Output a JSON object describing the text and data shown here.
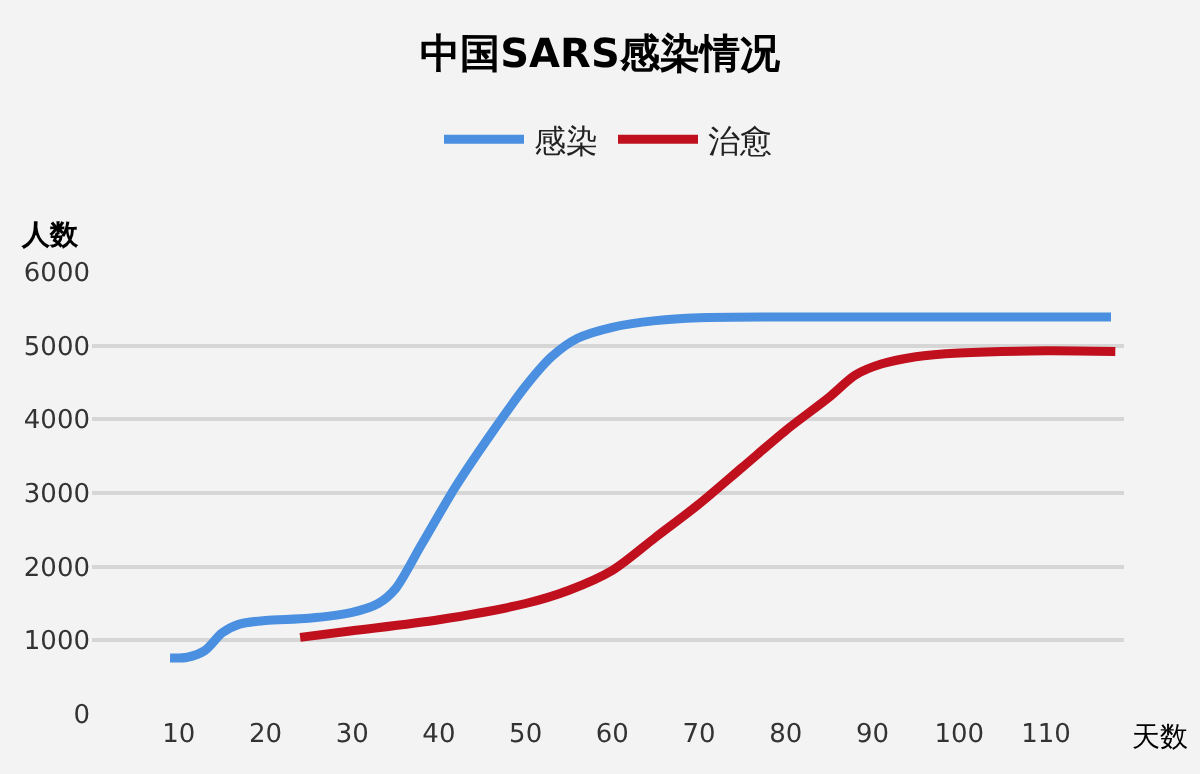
{
  "chart_data": {
    "type": "line",
    "title": "中国SARS感染情况",
    "xlabel": "天数",
    "ylabel": "人数",
    "xlim": [
      0,
      119
    ],
    "xticks": [
      10,
      20,
      30,
      40,
      50,
      60,
      70,
      80,
      90,
      100,
      110
    ],
    "ylim": [
      0,
      6000
    ],
    "yticks": [
      0,
      1000,
      2000,
      3000,
      4000,
      5000,
      6000
    ],
    "grid": "y",
    "legend": "top",
    "line_style": "solid",
    "marker": "none",
    "series": [
      {
        "name": "感染",
        "color": "#4a8fe0",
        "x": [
          9,
          11,
          13,
          15,
          17,
          20,
          25,
          30,
          33,
          35,
          38,
          42,
          46,
          50,
          53,
          56,
          60,
          65,
          70,
          80,
          117.5
        ],
        "values": [
          760,
          770,
          860,
          1100,
          1220,
          1270,
          1300,
          1380,
          1500,
          1700,
          2300,
          3100,
          3800,
          4450,
          4850,
          5100,
          5250,
          5340,
          5380,
          5390,
          5390
        ]
      },
      {
        "name": "治愈",
        "color": "#c0101e",
        "x": [
          24,
          30,
          40,
          50,
          55,
          60,
          65,
          70,
          75,
          80,
          85,
          88,
          91,
          95,
          100,
          110,
          118
        ],
        "values": [
          1040,
          1130,
          1280,
          1500,
          1680,
          1950,
          2400,
          2850,
          3350,
          3850,
          4300,
          4600,
          4750,
          4850,
          4900,
          4930,
          4920
        ]
      }
    ]
  }
}
